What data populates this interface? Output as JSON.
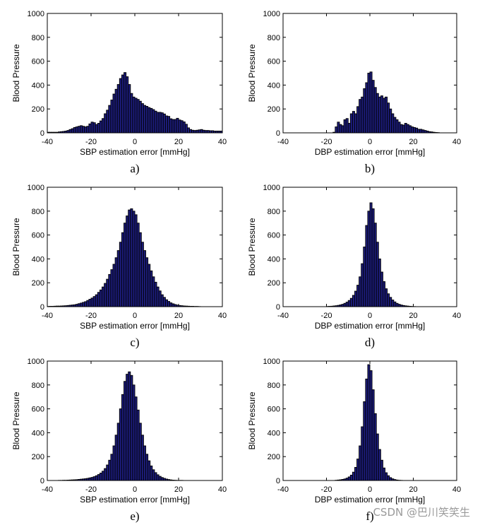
{
  "watermark": "CSDN @巴川笑笑生",
  "chart_data": [
    {
      "id": "a",
      "type": "bar",
      "panel_label": "a)",
      "title": "",
      "xlabel": "SBP estimation error [mmHg]",
      "ylabel": "Blood Pressure",
      "xlim": [
        -40,
        40
      ],
      "ylim": [
        0,
        1000
      ],
      "xticks": [
        -40,
        -20,
        0,
        20,
        40
      ],
      "yticks": [
        0,
        200,
        400,
        600,
        800,
        1000
      ],
      "bin_width": 1,
      "x_start": -40,
      "values": [
        5,
        5,
        5,
        5,
        5,
        8,
        10,
        12,
        15,
        20,
        28,
        35,
        45,
        50,
        55,
        60,
        55,
        50,
        55,
        75,
        90,
        85,
        70,
        80,
        100,
        120,
        160,
        190,
        230,
        275,
        325,
        365,
        405,
        455,
        485,
        505,
        470,
        405,
        330,
        300,
        290,
        280,
        265,
        245,
        230,
        222,
        212,
        205,
        195,
        182,
        172,
        172,
        168,
        158,
        142,
        138,
        118,
        112,
        112,
        122,
        108,
        102,
        92,
        72,
        42,
        28,
        22,
        20,
        22,
        25,
        28,
        22,
        20,
        20,
        18,
        18,
        15,
        15,
        15,
        15
      ]
    },
    {
      "id": "b",
      "type": "bar",
      "panel_label": "b)",
      "title": "",
      "xlabel": "DBP estimation error [mmHg]",
      "ylabel": "Blood Pressure",
      "xlim": [
        -40,
        40
      ],
      "ylim": [
        0,
        1000
      ],
      "xticks": [
        -40,
        -20,
        0,
        20,
        40
      ],
      "yticks": [
        0,
        200,
        400,
        600,
        800,
        1000
      ],
      "bin_width": 1,
      "x_start": -40,
      "values": [
        0,
        0,
        0,
        0,
        0,
        0,
        0,
        0,
        0,
        0,
        0,
        0,
        0,
        0,
        0,
        0,
        0,
        0,
        0,
        0,
        0,
        0,
        0,
        5,
        50,
        90,
        70,
        60,
        110,
        120,
        80,
        160,
        180,
        160,
        220,
        280,
        300,
        370,
        420,
        500,
        510,
        440,
        380,
        330,
        300,
        310,
        290,
        300,
        250,
        200,
        160,
        130,
        110,
        90,
        70,
        65,
        80,
        70,
        60,
        50,
        45,
        40,
        30,
        30,
        25,
        20,
        15,
        10,
        8,
        5,
        3,
        2,
        0,
        0,
        0,
        0,
        0,
        0,
        0,
        0
      ]
    },
    {
      "id": "c",
      "type": "bar",
      "panel_label": "c)",
      "title": "",
      "xlabel": "SBP estimation error [mmHg]",
      "ylabel": "Blood Pressure",
      "xlim": [
        -40,
        40
      ],
      "ylim": [
        0,
        1000
      ],
      "xticks": [
        -40,
        -20,
        0,
        20,
        40
      ],
      "yticks": [
        0,
        200,
        400,
        600,
        800,
        1000
      ],
      "bin_width": 1,
      "x_start": -40,
      "values": [
        2,
        3,
        3,
        4,
        5,
        5,
        6,
        7,
        8,
        10,
        12,
        14,
        16,
        20,
        25,
        30,
        36,
        42,
        52,
        62,
        72,
        85,
        100,
        120,
        140,
        165,
        195,
        230,
        270,
        310,
        355,
        410,
        470,
        540,
        620,
        700,
        760,
        810,
        820,
        800,
        770,
        700,
        620,
        540,
        470,
        410,
        355,
        300,
        250,
        205,
        165,
        132,
        100,
        78,
        58,
        44,
        32,
        24,
        18,
        13,
        10,
        8,
        6,
        5,
        4,
        3,
        3,
        2,
        2,
        1,
        0,
        0,
        0,
        0,
        0,
        0,
        0,
        0,
        0,
        0
      ]
    },
    {
      "id": "d",
      "type": "bar",
      "panel_label": "d)",
      "title": "",
      "xlabel": "DBP estimation error [mmHg]",
      "ylabel": "Blood Pressure",
      "xlim": [
        -40,
        40
      ],
      "ylim": [
        0,
        1000
      ],
      "xticks": [
        -40,
        -20,
        0,
        20,
        40
      ],
      "yticks": [
        0,
        200,
        400,
        600,
        800,
        1000
      ],
      "bin_width": 1,
      "x_start": -40,
      "values": [
        0,
        0,
        0,
        0,
        0,
        0,
        0,
        0,
        0,
        0,
        0,
        0,
        0,
        0,
        0,
        0,
        0,
        0,
        0,
        0,
        2,
        3,
        4,
        6,
        8,
        11,
        15,
        20,
        28,
        38,
        52,
        70,
        95,
        130,
        180,
        250,
        360,
        500,
        680,
        800,
        870,
        820,
        700,
        540,
        400,
        290,
        210,
        150,
        108,
        78,
        56,
        40,
        28,
        20,
        14,
        10,
        7,
        5,
        3,
        2,
        1,
        0,
        0,
        0,
        0,
        0,
        0,
        0,
        0,
        0,
        0,
        0,
        0,
        0,
        0,
        0,
        0,
        0,
        0,
        0
      ]
    },
    {
      "id": "e",
      "type": "bar",
      "panel_label": "e)",
      "title": "",
      "xlabel": "SBP estimation error [mmHg]",
      "ylabel": "Blood Pressure",
      "xlim": [
        -40,
        40
      ],
      "ylim": [
        0,
        1000
      ],
      "xticks": [
        -40,
        -20,
        0,
        20,
        40
      ],
      "yticks": [
        0,
        200,
        400,
        600,
        800,
        1000
      ],
      "bin_width": 1,
      "x_start": -40,
      "values": [
        0,
        0,
        0,
        0,
        0,
        1,
        1,
        2,
        2,
        3,
        4,
        5,
        6,
        7,
        9,
        11,
        13,
        15,
        18,
        22,
        26,
        32,
        40,
        50,
        62,
        78,
        100,
        130,
        170,
        220,
        290,
        380,
        480,
        600,
        720,
        830,
        890,
        910,
        880,
        800,
        700,
        590,
        480,
        380,
        290,
        220,
        165,
        122,
        90,
        66,
        48,
        35,
        25,
        18,
        12,
        8,
        5,
        3,
        2,
        1,
        1,
        1,
        0,
        0,
        0,
        0,
        0,
        0,
        0,
        0,
        0,
        0,
        0,
        0,
        0,
        0,
        0,
        0,
        0,
        0
      ]
    },
    {
      "id": "f",
      "type": "bar",
      "panel_label": "f)",
      "title": "",
      "xlabel": "DBP estimation error [mmHg]",
      "ylabel": "Blood Pressure",
      "xlim": [
        -40,
        40
      ],
      "ylim": [
        0,
        1000
      ],
      "xticks": [
        -40,
        -20,
        0,
        20,
        40
      ],
      "yticks": [
        0,
        200,
        400,
        600,
        800,
        1000
      ],
      "bin_width": 1,
      "x_start": -40,
      "values": [
        0,
        0,
        0,
        0,
        0,
        0,
        0,
        0,
        0,
        0,
        0,
        0,
        0,
        0,
        0,
        0,
        0,
        0,
        0,
        0,
        0,
        0,
        0,
        0,
        2,
        4,
        6,
        9,
        13,
        20,
        30,
        45,
        70,
        110,
        180,
        290,
        450,
        660,
        850,
        970,
        920,
        760,
        560,
        390,
        260,
        170,
        105,
        65,
        40,
        24,
        14,
        8,
        4,
        2,
        1,
        0,
        0,
        0,
        0,
        0,
        0,
        0,
        0,
        0,
        0,
        0,
        0,
        0,
        0,
        0,
        0,
        0,
        0,
        0,
        0,
        0,
        0,
        0,
        0,
        0
      ]
    }
  ]
}
